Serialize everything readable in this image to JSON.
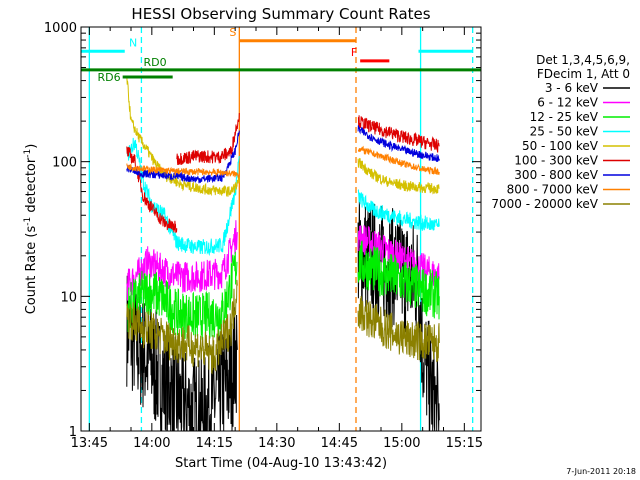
{
  "chart_data": {
    "type": "line",
    "title": "HESSI Observing Summary Count Rates",
    "xlabel": "Start Time (04-Aug-10 13:43:42)",
    "ylabel_main": "Count Rate (s",
    "ylabel_sup1": "-1",
    "ylabel_mid": " detector",
    "ylabel_sup2": "-1",
    "ylabel_end": ")",
    "yscale": "log",
    "ylim": [
      1,
      1000
    ],
    "xlim_minutes": [
      -2,
      94
    ],
    "x_ticks": [
      {
        "m": 0,
        "label": "13:45"
      },
      {
        "m": 15,
        "label": "14:00"
      },
      {
        "m": 30,
        "label": "14:15"
      },
      {
        "m": 45,
        "label": "14:30"
      },
      {
        "m": 60,
        "label": "14:45"
      },
      {
        "m": 75,
        "label": "15:00"
      },
      {
        "m": 90,
        "label": "15:15"
      }
    ],
    "y_ticks": [
      {
        "v": 1,
        "label": "1"
      },
      {
        "v": 10,
        "label": "10"
      },
      {
        "v": 100,
        "label": "100"
      },
      {
        "v": 1000,
        "label": "1000"
      }
    ],
    "legend": {
      "placement": "right",
      "header1": "Det 1,3,4,5,6,9,",
      "header2": "FDecim 1, Att 0",
      "entries": [
        {
          "label": "3 - 6 keV",
          "color": "#000000"
        },
        {
          "label": "6 - 12 keV",
          "color": "#ff00ff"
        },
        {
          "label": "12 - 25 keV",
          "color": "#00ee00"
        },
        {
          "label": "25 - 50 keV",
          "color": "#00ffff"
        },
        {
          "label": "50 - 100 keV",
          "color": "#d4c000"
        },
        {
          "label": "100 - 300 keV",
          "color": "#dd0000"
        },
        {
          "label": "300 - 800 keV",
          "color": "#0000dd"
        },
        {
          "label": "800 - 7000 keV",
          "color": "#ff8000"
        },
        {
          "label": "7000 - 20000 keV",
          "color": "#8b8000"
        }
      ]
    },
    "flags": [
      {
        "label": "N",
        "color": "#00ffff",
        "y": 660,
        "segments": [
          [
            -2,
            8.5
          ],
          [
            79,
            92
          ]
        ]
      },
      {
        "label": "S",
        "color": "#ff8000",
        "y": 790,
        "segments": [
          [
            36,
            64
          ]
        ]
      },
      {
        "label": "F",
        "color": "#ff0000",
        "y": 560,
        "segments": [
          [
            65,
            72
          ]
        ]
      },
      {
        "label": "RD0",
        "color": "#008000",
        "y": 480,
        "segments": [
          [
            -2,
            94
          ]
        ]
      },
      {
        "label": "RD6",
        "color": "#008000",
        "y": 425,
        "segments": [
          [
            8,
            20
          ]
        ]
      }
    ],
    "vlines": [
      {
        "m": 0,
        "color": "#00ffff",
        "dash": false
      },
      {
        "m": 12.5,
        "color": "#00ffff",
        "dash": true
      },
      {
        "m": 36,
        "color": "#ff8000",
        "dash": false
      },
      {
        "m": 64,
        "color": "#ff8000",
        "dash": true
      },
      {
        "m": 79.5,
        "color": "#00ffff",
        "dash": false
      },
      {
        "m": 92,
        "color": "#00ffff",
        "dash": true
      }
    ],
    "series": [
      {
        "name": "3 - 6 keV",
        "color": "#000000",
        "noise": 0.45,
        "segments": [
          [
            [
              9,
              6
            ],
            [
              12,
              4
            ],
            [
              14,
              3.5
            ],
            [
              18,
              2.3
            ],
            [
              22,
              1.6
            ],
            [
              26,
              1.3
            ],
            [
              30,
              1.7
            ],
            [
              34,
              2.5
            ],
            [
              35.5,
              4
            ]
          ],
          [
            [
              64.5,
              21
            ],
            [
              70,
              18
            ],
            [
              75,
              15
            ],
            [
              79,
              13
            ],
            [
              80,
              4
            ],
            [
              82,
              2
            ],
            [
              84,
              1.2
            ]
          ]
        ]
      },
      {
        "name": "6 - 12 keV",
        "color": "#ff00ff",
        "noise": 0.12,
        "segments": [
          [
            [
              9,
              12
            ],
            [
              12,
              15
            ],
            [
              14,
              18
            ],
            [
              17,
              16
            ],
            [
              21,
              14
            ],
            [
              26,
              14
            ],
            [
              32,
              15
            ],
            [
              35.5,
              30
            ]
          ],
          [
            [
              64.5,
              28
            ],
            [
              70,
              23
            ],
            [
              75,
              19
            ],
            [
              80,
              16
            ],
            [
              84,
              14
            ]
          ]
        ]
      },
      {
        "name": "12 - 25 keV",
        "color": "#00ee00",
        "noise": 0.18,
        "segments": [
          [
            [
              9,
              8
            ],
            [
              12,
              10
            ],
            [
              14,
              11
            ],
            [
              17,
              10
            ],
            [
              21,
              7.5
            ],
            [
              26,
              7
            ],
            [
              32,
              7.5
            ],
            [
              35.5,
              18
            ]
          ],
          [
            [
              64.5,
              18
            ],
            [
              70,
              15
            ],
            [
              75,
              13
            ],
            [
              80,
              11
            ],
            [
              84,
              10
            ]
          ]
        ]
      },
      {
        "name": "25 - 50 keV",
        "color": "#00ffff",
        "noise": 0.06,
        "segments": [
          [
            [
              9,
              110
            ],
            [
              11,
              140
            ],
            [
              13,
              70
            ],
            [
              15,
              48
            ],
            [
              18,
              40
            ],
            [
              21,
              25
            ],
            [
              26,
              23
            ],
            [
              32,
              24
            ],
            [
              35,
              60
            ],
            [
              36,
              110
            ]
          ],
          [
            [
              64.5,
              55
            ],
            [
              68,
              44
            ],
            [
              72,
              40
            ],
            [
              76,
              37
            ],
            [
              80,
              35
            ],
            [
              84,
              33
            ]
          ]
        ]
      },
      {
        "name": "50 - 100 keV",
        "color": "#d4c000",
        "noise": 0.04,
        "segments": [
          [
            [
              9,
              420
            ],
            [
              10,
              200
            ],
            [
              12,
              150
            ],
            [
              14,
              120
            ],
            [
              16,
              95
            ],
            [
              18,
              80
            ],
            [
              22,
              68
            ],
            [
              28,
              62
            ],
            [
              34,
              60
            ],
            [
              36,
              70
            ]
          ],
          [
            [
              64.5,
              100
            ],
            [
              68,
              80
            ],
            [
              72,
              70
            ],
            [
              76,
              66
            ],
            [
              80,
              64
            ],
            [
              84,
              63
            ]
          ]
        ]
      },
      {
        "name": "100 - 300 keV",
        "color": "#dd0000",
        "noise": 0.05,
        "segments": [
          [
            [
              9,
              120
            ],
            [
              11,
              100
            ],
            [
              13,
              55
            ],
            [
              15,
              45
            ],
            [
              18,
              35
            ],
            [
              21,
              32
            ]
          ],
          [
            [
              21,
              105
            ],
            [
              26,
              110
            ],
            [
              31,
              108
            ],
            [
              34,
              118
            ],
            [
              36,
              230
            ]
          ],
          [
            [
              64.5,
              200
            ],
            [
              68,
              180
            ],
            [
              72,
              165
            ],
            [
              76,
              150
            ],
            [
              80,
              140
            ],
            [
              84,
              130
            ]
          ]
        ]
      },
      {
        "name": "300 - 800 keV",
        "color": "#0000dd",
        "noise": 0.03,
        "segments": [
          [
            [
              9,
              90
            ],
            [
              12,
              82
            ],
            [
              16,
              80
            ],
            [
              20,
              78
            ],
            [
              26,
              74
            ],
            [
              32,
              76
            ],
            [
              35,
              120
            ],
            [
              36,
              170
            ]
          ],
          [
            [
              64.5,
              175
            ],
            [
              68,
              150
            ],
            [
              72,
              132
            ],
            [
              76,
              120
            ],
            [
              80,
              112
            ],
            [
              84,
              105
            ]
          ]
        ]
      },
      {
        "name": "800 - 7000 keV",
        "color": "#ff8000",
        "noise": 0.025,
        "segments": [
          [
            [
              9,
              92
            ],
            [
              14,
              88
            ],
            [
              20,
              85
            ],
            [
              26,
              84
            ],
            [
              32,
              83
            ],
            [
              36,
              80
            ]
          ],
          [
            [
              64.5,
              125
            ],
            [
              68,
              115
            ],
            [
              72,
              105
            ],
            [
              76,
              95
            ],
            [
              80,
              88
            ],
            [
              84,
              84
            ]
          ]
        ]
      },
      {
        "name": "7000 - 20000 keV",
        "color": "#8b8000",
        "noise": 0.15,
        "segments": [
          [
            [
              9,
              7
            ],
            [
              12,
              6
            ],
            [
              15,
              5.5
            ],
            [
              20,
              4.6
            ],
            [
              26,
              4.2
            ],
            [
              30,
              3.6
            ],
            [
              34,
              6
            ],
            [
              35.5,
              12
            ]
          ],
          [
            [
              64.5,
              8
            ],
            [
              68,
              6.5
            ],
            [
              72,
              5.5
            ],
            [
              76,
              4.8
            ],
            [
              80,
              4.6
            ],
            [
              84,
              4.5
            ]
          ]
        ]
      }
    ]
  },
  "footer": {
    "date": "7-Jun-2011 20:18"
  }
}
